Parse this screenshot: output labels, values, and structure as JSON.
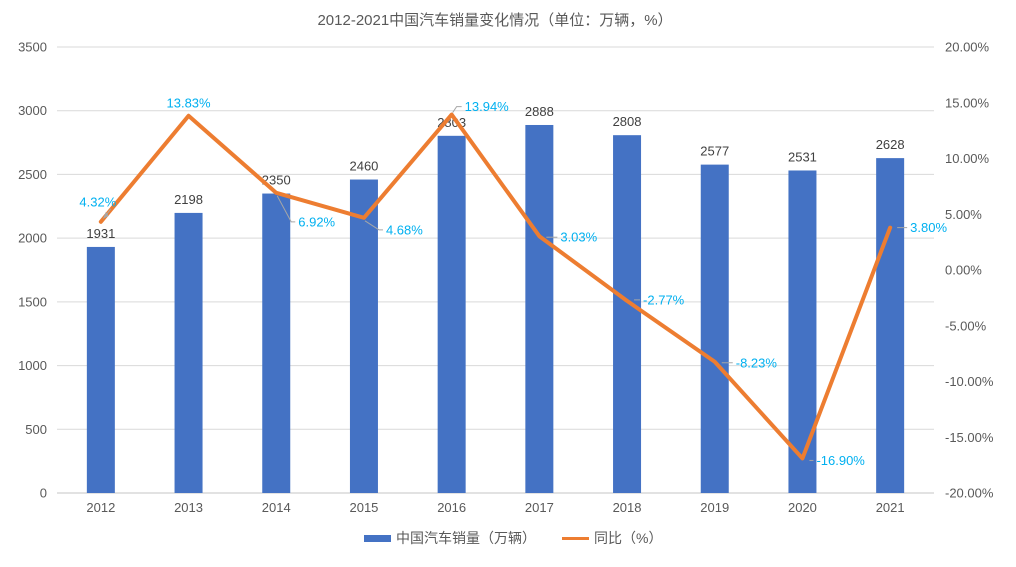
{
  "chart_data": {
    "type": "combo-bar-line",
    "title": "2012-2021中国汽车销量变化情况（单位：万辆，%）",
    "categories": [
      "2012",
      "2013",
      "2014",
      "2015",
      "2016",
      "2017",
      "2018",
      "2019",
      "2020",
      "2021"
    ],
    "series": [
      {
        "name": "中国汽车销量（万辆）",
        "type": "bar",
        "axis": "left",
        "color": "#4472C4",
        "values": [
          1931,
          2198,
          2350,
          2460,
          2803,
          2888,
          2808,
          2577,
          2531,
          2628
        ],
        "value_labels": [
          "1931",
          "2198",
          "2350",
          "2460",
          "2803",
          "2888",
          "2808",
          "2577",
          "2531",
          "2628"
        ]
      },
      {
        "name": "同比（%）",
        "type": "line",
        "axis": "right",
        "color": "#ED7D31",
        "values": [
          4.32,
          13.83,
          6.92,
          4.68,
          13.94,
          3.03,
          -2.77,
          -8.23,
          -16.9,
          3.8
        ],
        "value_labels": [
          "4.32%",
          "13.83%",
          "6.92%",
          "4.68%",
          "13.94%",
          "3.03%",
          "-2.77%",
          "-8.23%",
          "-16.90%",
          "3.80%"
        ]
      }
    ],
    "left_axis": {
      "min": 0,
      "max": 3500,
      "tick_values": [
        0,
        500,
        1000,
        1500,
        2000,
        2500,
        3000,
        3500
      ],
      "tick_labels": [
        "0",
        "500",
        "1000",
        "1500",
        "2000",
        "2500",
        "3000",
        "3500"
      ]
    },
    "right_axis": {
      "min": -20,
      "max": 20,
      "tick_values": [
        -20,
        -15,
        -10,
        -5,
        0,
        5,
        10,
        15,
        20
      ],
      "tick_labels": [
        "-20.00%",
        "-15.00%",
        "-10.00%",
        "-5.00%",
        "0.00%",
        "5.00%",
        "10.00%",
        "15.00%",
        "20.00%"
      ]
    },
    "legend_position": "bottom",
    "grid": true,
    "colors": {
      "bar": "#4472C4",
      "line": "#ED7D31",
      "percent_label": "#00B0F0",
      "value_label": "#404040",
      "axis_text": "#595959",
      "gridline": "#D9D9D9",
      "axis_line": "#C6C6C6",
      "leader": "#A6A6A6"
    }
  }
}
